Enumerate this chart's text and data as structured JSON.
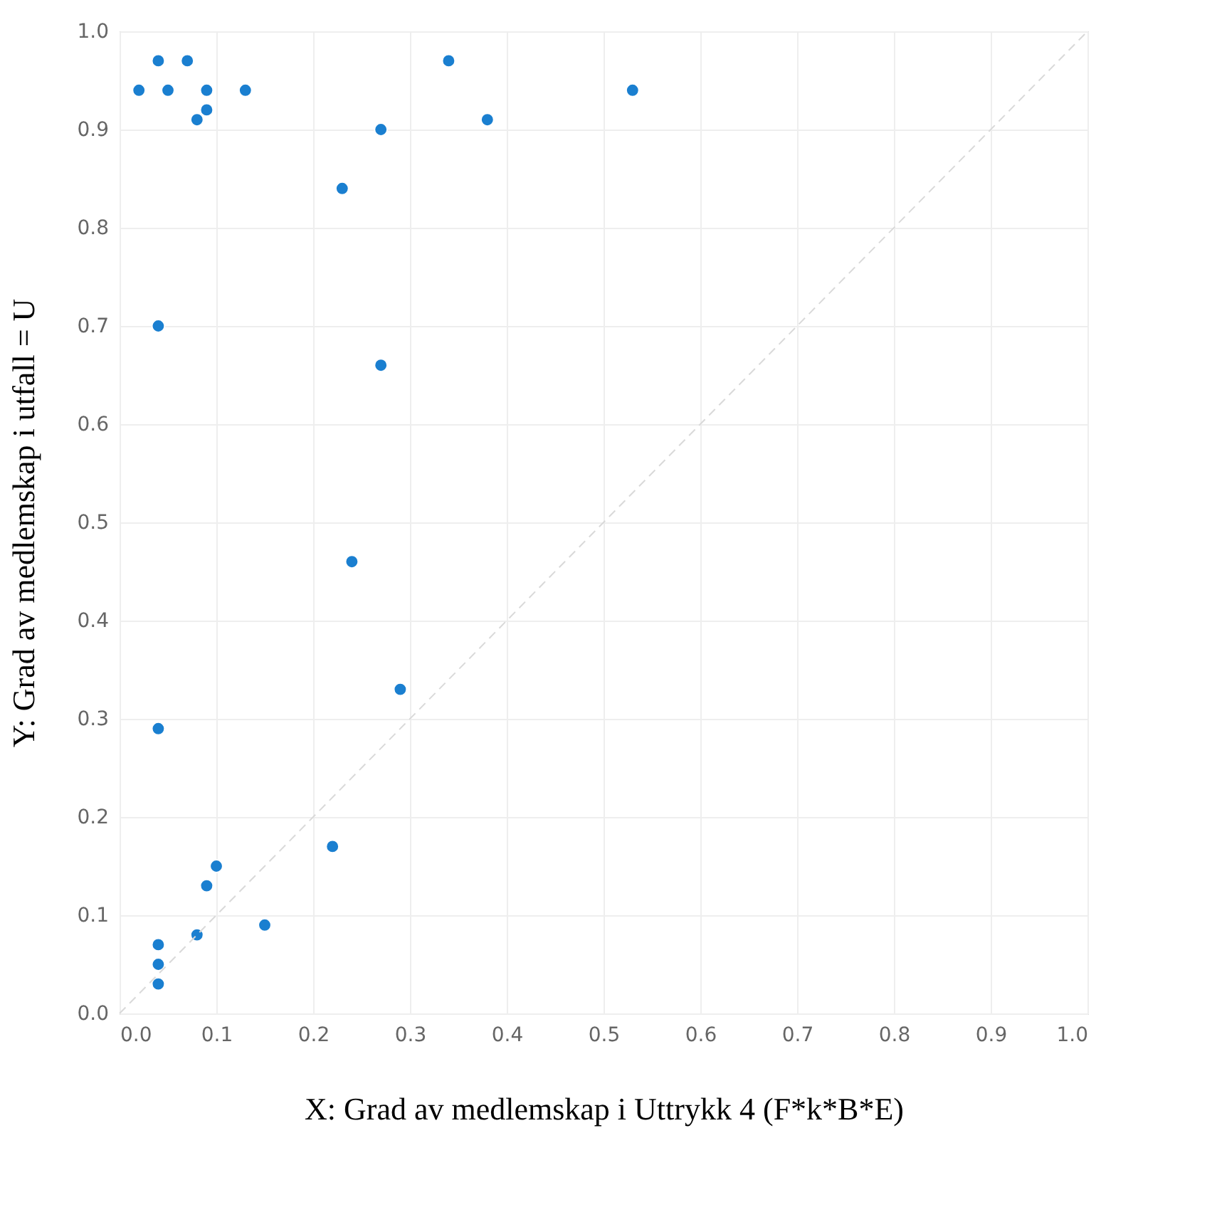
{
  "chart_data": {
    "type": "scatter",
    "xlabel": "X: Grad av medlemskap i Uttrykk 4 (F*k*B*E)",
    "ylabel": "Y: Grad av medlemskap i utfall = U",
    "x": [
      0.02,
      0.04,
      0.05,
      0.07,
      0.08,
      0.09,
      0.09,
      0.13,
      0.34,
      0.38,
      0.53,
      0.27,
      0.23,
      0.04,
      0.27,
      0.24,
      0.29,
      0.04,
      0.22,
      0.1,
      0.09,
      0.15,
      0.08,
      0.04,
      0.04,
      0.04
    ],
    "series": [
      {
        "color": "#1a7fd0",
        "marker": "circle",
        "values": [
          0.94,
          0.97,
          0.94,
          0.97,
          0.91,
          0.94,
          0.92,
          0.94,
          0.97,
          0.91,
          0.94,
          0.9,
          0.84,
          0.7,
          0.66,
          0.46,
          0.33,
          0.29,
          0.17,
          0.15,
          0.13,
          0.09,
          0.08,
          0.07,
          0.05,
          0.03
        ]
      },
      {
        "type": "line",
        "color": "#d9d9d9",
        "line_style": "dashed",
        "x": [
          0,
          1
        ],
        "values": [
          0,
          1
        ]
      }
    ],
    "xlim": [
      0,
      1
    ],
    "ylim": [
      0,
      1
    ],
    "xticks": [
      {
        "value": 0,
        "label": "0.0"
      },
      0.1,
      0.2,
      0.3,
      0.4,
      0.5,
      0.6,
      0.7,
      0.8,
      0.9,
      {
        "value": 1,
        "label": "1.0"
      }
    ],
    "yticks": [
      {
        "value": 0,
        "label": "0.0"
      },
      0.1,
      0.2,
      0.3,
      0.4,
      0.5,
      0.6,
      0.7,
      0.8,
      0.9,
      {
        "value": 1,
        "label": "1.0"
      }
    ],
    "grid": true
  }
}
